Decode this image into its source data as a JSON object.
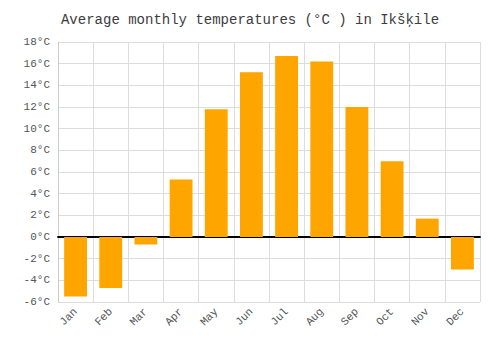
{
  "chart_data": {
    "type": "bar",
    "title": "Average monthly temperatures (°C ) in Ikšķile",
    "categories": [
      "Jan",
      "Feb",
      "Mar",
      "Apr",
      "May",
      "Jun",
      "Jul",
      "Aug",
      "Sep",
      "Oct",
      "Nov",
      "Dec"
    ],
    "values": [
      -5.5,
      -4.7,
      -0.7,
      5.3,
      11.8,
      15.2,
      16.7,
      16.2,
      12.0,
      7.0,
      1.7,
      -3.0
    ],
    "color": "#FFA500",
    "ylim": [
      -6,
      18
    ],
    "yticks": [
      {
        "value": -6,
        "label": "-6°C"
      },
      {
        "value": -4,
        "label": "-4°C"
      },
      {
        "value": -2,
        "label": "-2°C"
      },
      {
        "value": 0,
        "label": "0°C"
      },
      {
        "value": 2,
        "label": "2°C"
      },
      {
        "value": 4,
        "label": "4°C"
      },
      {
        "value": 6,
        "label": "6°C"
      },
      {
        "value": 8,
        "label": "8°C"
      },
      {
        "value": 10,
        "label": "10°C"
      },
      {
        "value": 12,
        "label": "12°C"
      },
      {
        "value": 14,
        "label": "14°C"
      },
      {
        "value": 16,
        "label": "16°C"
      },
      {
        "value": 18,
        "label": "18°C"
      }
    ],
    "grid": true
  }
}
